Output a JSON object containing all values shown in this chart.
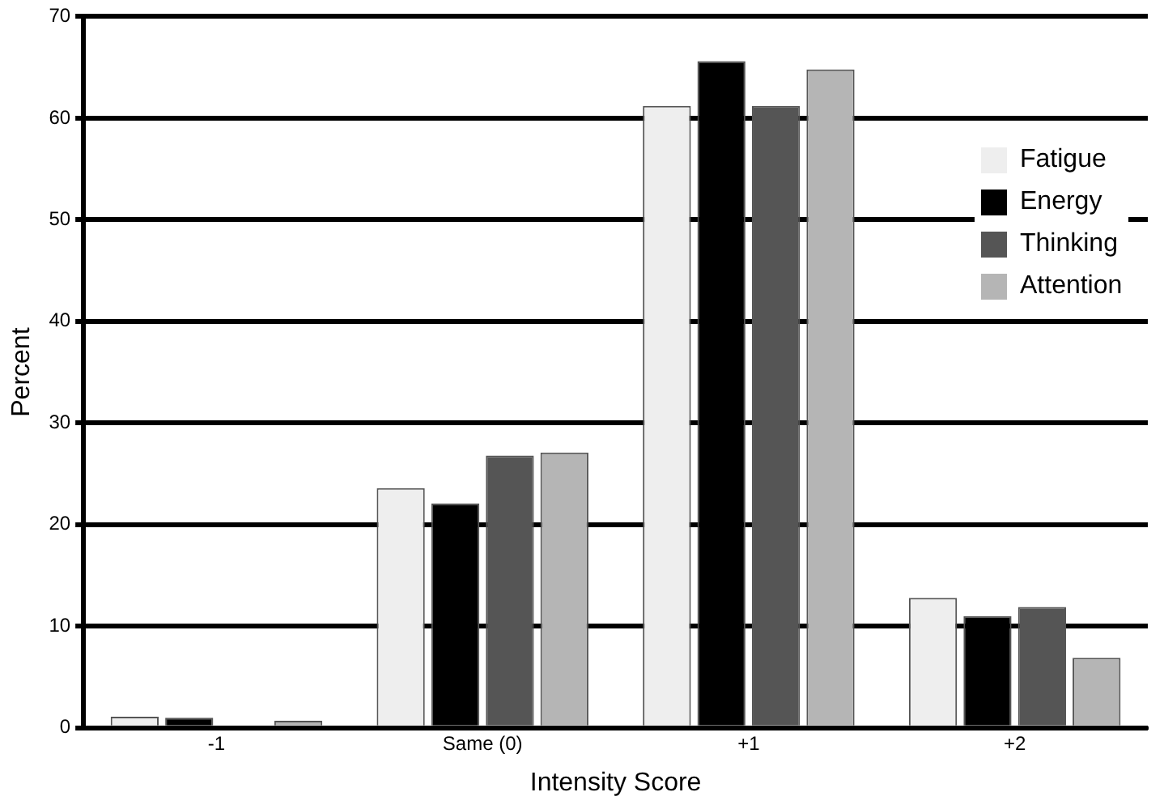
{
  "chart_data": {
    "type": "bar",
    "xlabel": "Intensity Score",
    "ylabel": "Percent",
    "categories": [
      "-1",
      "Same (0)",
      "+1",
      "+2"
    ],
    "series": [
      {
        "name": "Fatigue",
        "color": "#eeeeee",
        "values": [
          1.1,
          23.6,
          61.2,
          12.8
        ]
      },
      {
        "name": "Energy",
        "color": "#000000",
        "values": [
          1.0,
          22.1,
          65.6,
          11.0
        ]
      },
      {
        "name": "Thinking",
        "color": "#555555",
        "values": [
          0,
          26.8,
          61.2,
          11.9
        ]
      },
      {
        "name": "Attention",
        "color": "#b5b5b5",
        "values": [
          0.7,
          27.1,
          64.8,
          6.9
        ]
      }
    ],
    "ylim": [
      0,
      70
    ],
    "yticks": [
      0,
      10,
      20,
      30,
      40,
      50,
      60,
      70
    ],
    "grid": "y",
    "legend": "right"
  }
}
